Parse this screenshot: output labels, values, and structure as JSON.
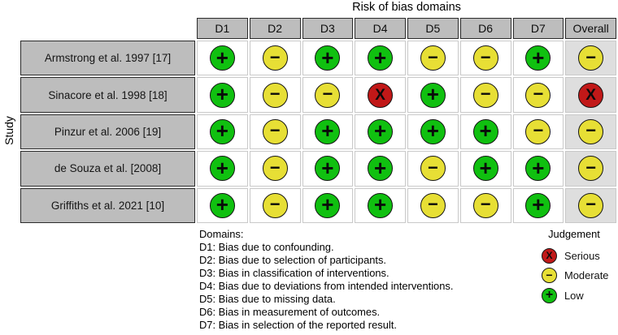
{
  "chart_data": {
    "type": "table",
    "title": "Risk of bias domains",
    "ylabel": "Study",
    "columns": [
      "D1",
      "D2",
      "D3",
      "D4",
      "D5",
      "D6",
      "D7",
      "Overall"
    ],
    "rows": [
      {
        "study": "Armstrong et al. 1997 [17]",
        "judgements": [
          "low",
          "moderate",
          "low",
          "low",
          "moderate",
          "moderate",
          "low",
          "moderate"
        ]
      },
      {
        "study": "Sinacore et al. 1998 [18]",
        "judgements": [
          "low",
          "moderate",
          "moderate",
          "serious",
          "low",
          "moderate",
          "moderate",
          "serious"
        ]
      },
      {
        "study": "Pinzur et al. 2006 [19]",
        "judgements": [
          "low",
          "moderate",
          "low",
          "low",
          "low",
          "low",
          "moderate",
          "moderate"
        ]
      },
      {
        "study": "de Souza et al. [2008]",
        "judgements": [
          "low",
          "moderate",
          "low",
          "low",
          "moderate",
          "low",
          "low",
          "moderate"
        ]
      },
      {
        "study": "Griffiths et al. 2021 [10]",
        "judgements": [
          "low",
          "moderate",
          "low",
          "low",
          "moderate",
          "moderate",
          "low",
          "moderate"
        ]
      }
    ],
    "symbols": {
      "low": "+",
      "moderate": "-",
      "serious": "X"
    },
    "colors": {
      "low": "#10c010",
      "moderate": "#e7df35",
      "serious": "#c11818",
      "header-bg": "#bdbdbd",
      "overall-bg": "#dedede"
    },
    "domains_note": {
      "heading": "Domains:",
      "items": [
        "D1: Bias due to confounding.",
        "D2: Bias due to selection of participants.",
        "D3: Bias in classification of interventions.",
        "D4: Bias due to deviations from intended interventions.",
        "D5: Bias due to missing data.",
        "D6: Bias in measurement of outcomes.",
        "D7: Bias in selection of the reported result."
      ]
    },
    "legend": {
      "title": "Judgement",
      "items": [
        {
          "judgement": "serious",
          "symbol": "X",
          "label": "Serious"
        },
        {
          "judgement": "moderate",
          "symbol": "-",
          "label": "Moderate"
        },
        {
          "judgement": "low",
          "symbol": "+",
          "label": "Low"
        }
      ]
    }
  }
}
